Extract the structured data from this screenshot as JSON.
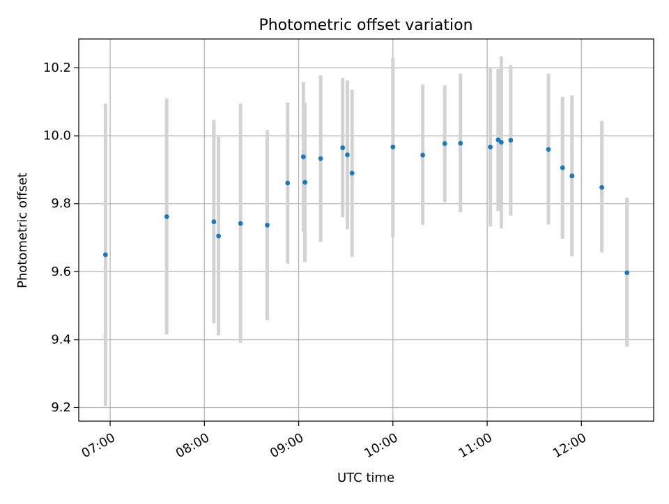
{
  "chart_data": {
    "type": "scatter",
    "title": "Photometric offset variation",
    "xlabel": "UTC time",
    "ylabel": "Photometric offset",
    "x_tick_labels": [
      "07:00",
      "08:00",
      "09:00",
      "10:00",
      "11:00",
      "12:00"
    ],
    "x_ticks": [
      "07:00",
      "08:00",
      "09:00",
      "10:00",
      "11:00",
      "12:00"
    ],
    "y_ticks": [
      9.2,
      9.4,
      9.6,
      9.8,
      10.0,
      10.2
    ],
    "y_tick_labels": [
      "9.2",
      "9.4",
      "9.6",
      "9.8",
      "10.0",
      "10.2"
    ],
    "xlim": [
      "06:40",
      "12:46"
    ],
    "ylim": [
      9.16,
      10.285
    ],
    "grid": true,
    "marker_color": "#1f77b4",
    "errorbar_color": "#d3d3d3",
    "series": [
      {
        "points": [
          {
            "x": "06:57",
            "y": 9.65,
            "low": 9.205,
            "high": 10.095
          },
          {
            "x": "07:36",
            "y": 9.762,
            "low": 9.415,
            "high": 10.11
          },
          {
            "x": "08:06",
            "y": 9.747,
            "low": 9.448,
            "high": 10.047
          },
          {
            "x": "08:09",
            "y": 9.705,
            "low": 9.413,
            "high": 9.997
          },
          {
            "x": "08:23",
            "y": 9.742,
            "low": 9.39,
            "high": 10.095
          },
          {
            "x": "08:40",
            "y": 9.737,
            "low": 9.457,
            "high": 10.017
          },
          {
            "x": "08:53",
            "y": 9.861,
            "low": 9.624,
            "high": 10.098
          },
          {
            "x": "09:03",
            "y": 9.938,
            "low": 9.718,
            "high": 10.158
          },
          {
            "x": "09:04",
            "y": 9.863,
            "low": 9.628,
            "high": 10.098
          },
          {
            "x": "09:14",
            "y": 9.933,
            "low": 9.688,
            "high": 10.178
          },
          {
            "x": "09:28",
            "y": 9.965,
            "low": 9.76,
            "high": 10.17
          },
          {
            "x": "09:31",
            "y": 9.944,
            "low": 9.725,
            "high": 10.163
          },
          {
            "x": "09:34",
            "y": 9.89,
            "low": 9.644,
            "high": 10.136
          },
          {
            "x": "10:00",
            "y": 9.967,
            "low": 9.703,
            "high": 10.231
          },
          {
            "x": "10:19",
            "y": 9.943,
            "low": 9.738,
            "high": 10.151
          },
          {
            "x": "10:33",
            "y": 9.977,
            "low": 9.805,
            "high": 10.149
          },
          {
            "x": "10:43",
            "y": 9.978,
            "low": 9.775,
            "high": 10.183
          },
          {
            "x": "11:02",
            "y": 9.967,
            "low": 9.733,
            "high": 10.2
          },
          {
            "x": "11:07",
            "y": 9.988,
            "low": 9.778,
            "high": 10.197
          },
          {
            "x": "11:09",
            "y": 9.981,
            "low": 9.727,
            "high": 10.234
          },
          {
            "x": "11:15",
            "y": 9.987,
            "low": 9.765,
            "high": 10.208
          },
          {
            "x": "11:39",
            "y": 9.96,
            "low": 9.739,
            "high": 10.183
          },
          {
            "x": "11:48",
            "y": 9.906,
            "low": 9.697,
            "high": 10.115
          },
          {
            "x": "11:54",
            "y": 9.882,
            "low": 9.645,
            "high": 10.119
          },
          {
            "x": "12:13",
            "y": 9.848,
            "low": 9.657,
            "high": 10.044
          },
          {
            "x": "12:29",
            "y": 9.597,
            "low": 9.379,
            "high": 9.818
          }
        ]
      }
    ]
  }
}
